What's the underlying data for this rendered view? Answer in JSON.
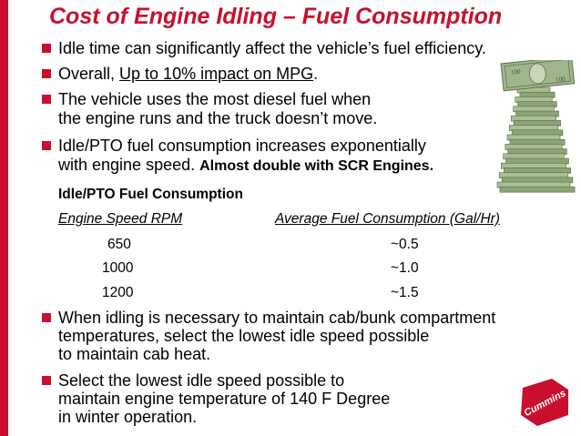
{
  "title": "Cost of Engine Idling – Fuel Consumption",
  "bullets": [
    {
      "text": "Idle time can significantly affect the vehicle’s fuel efficiency."
    },
    {
      "prefix": "Overall, ",
      "underlined": "Up to 10% impact on MPG",
      "suffix": "."
    },
    {
      "line1": "The vehicle uses the most diesel fuel when",
      "line2": "the engine runs and the truck doesn’t move."
    },
    {
      "line1": "Idle/PTO fuel consumption increases exponentially",
      "line2": "with engine speed.",
      "bold": "Almost double with SCR Engines."
    },
    {
      "line1": "When idling is necessary to maintain cab/bunk compartment",
      "line2": "temperatures, select the lowest idle speed possible",
      "line3": "to maintain cab heat."
    },
    {
      "line1": "Select the lowest idle speed possible to",
      "line2": "maintain engine temperature of 140 F Degree",
      "line3": "in winter operation."
    }
  ],
  "table": {
    "title": "Idle/PTO Fuel Consumption",
    "headers": [
      "Engine Speed RPM",
      "Average Fuel Consumption (Gal/Hr)"
    ],
    "rows": [
      [
        "650",
        "~0.5"
      ],
      [
        "1000",
        "~1.0"
      ],
      [
        "1200",
        "~1.5"
      ]
    ]
  },
  "images": {
    "money_stack": "stack-of-dollar-bills-image",
    "logo": "cummins-logo",
    "logo_text": "Cummins"
  },
  "colors": {
    "accent_red": "#c8102e",
    "bill_green": "#6f8f5a"
  }
}
